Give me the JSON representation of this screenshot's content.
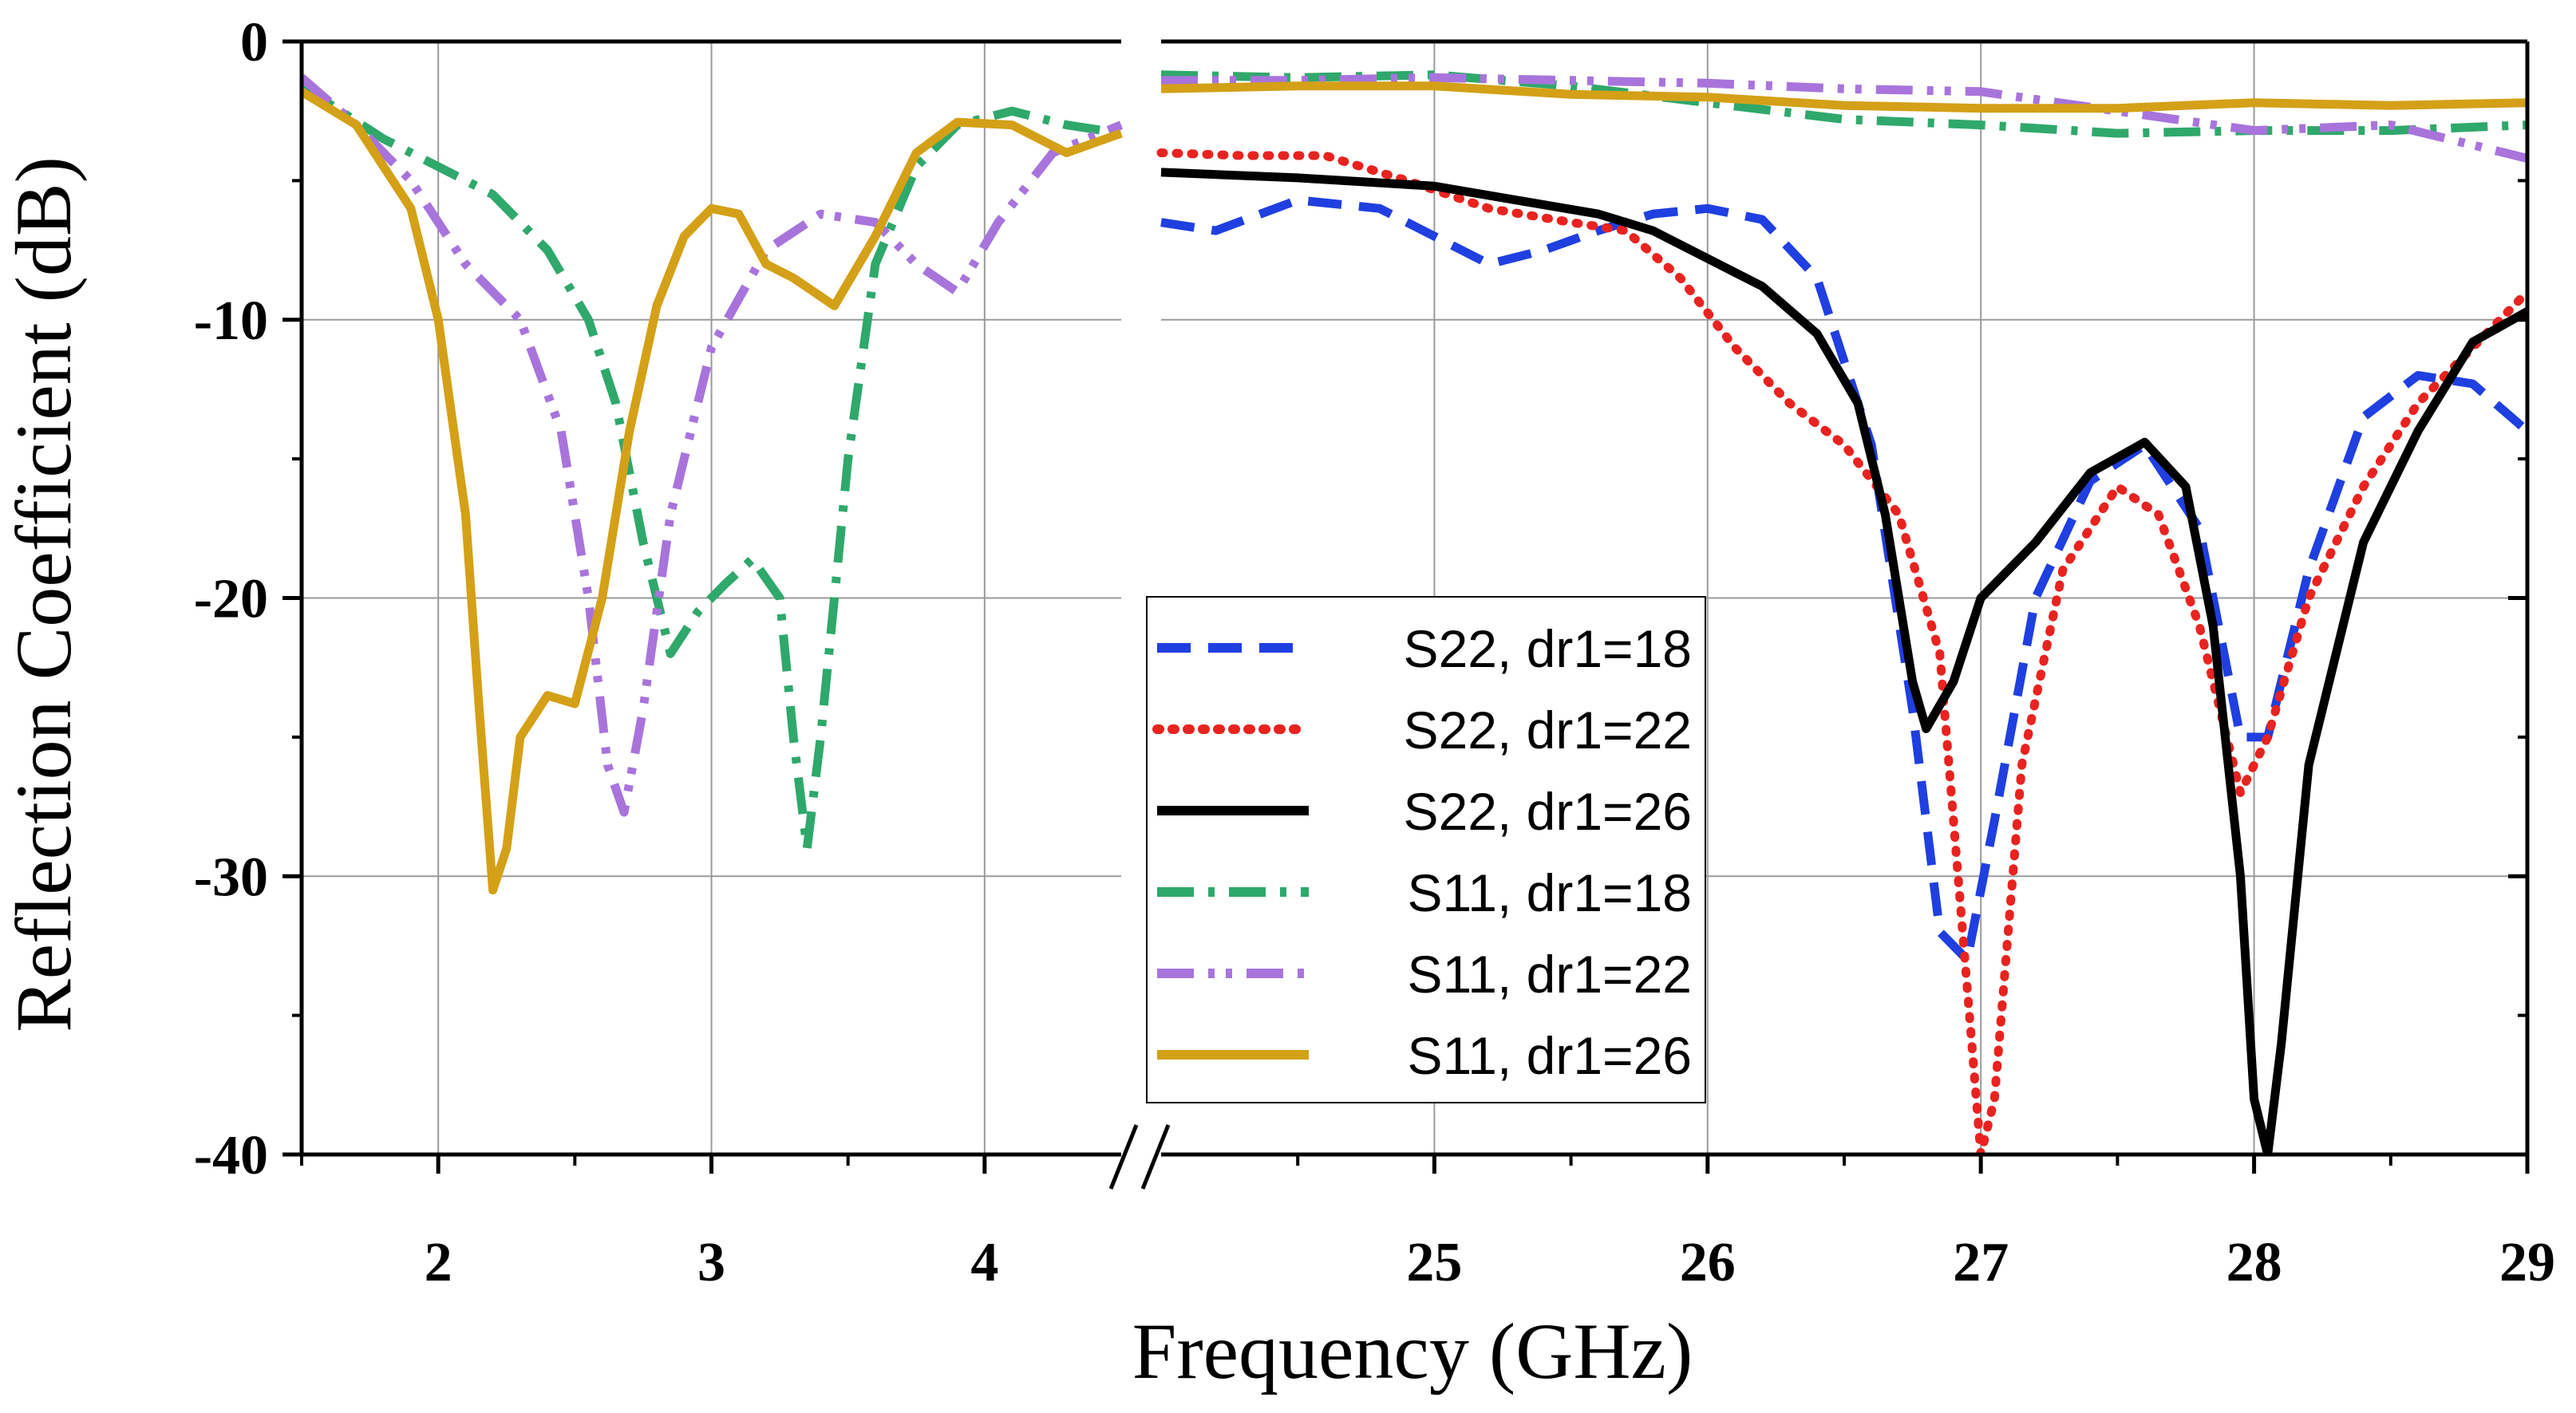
{
  "chart_data": {
    "type": "line",
    "xlabel": "Frequency (GHz)",
    "ylabel": "Reflection Coefficient (dB)",
    "ylim": [
      -40,
      0
    ],
    "grid": true,
    "legend_position": "center-right",
    "axis_break": "//",
    "panels": [
      {
        "name": "low-band",
        "xlim": [
          1.5,
          4.5
        ],
        "xticks": [
          2,
          3,
          4
        ]
      },
      {
        "name": "high-band",
        "xlim": [
          24,
          29
        ],
        "xticks": [
          25,
          26,
          27,
          28,
          29
        ]
      }
    ],
    "yticks": [
      0,
      -10,
      -20,
      -30,
      -40
    ],
    "xtick_labels": [
      "2",
      "3",
      "4",
      "25",
      "26",
      "27",
      "28",
      "29"
    ],
    "ytick_labels": [
      "0",
      "-10",
      "-20",
      "-30",
      "-40"
    ],
    "series": [
      {
        "name": "S22, dr1=18",
        "color": "#1f3fe0",
        "style": "dash",
        "points": [
          [
            24.0,
            -6.5
          ],
          [
            24.2,
            -6.8
          ],
          [
            24.5,
            -5.7
          ],
          [
            24.8,
            -6.0
          ],
          [
            25.0,
            -7.0
          ],
          [
            25.2,
            -8.0
          ],
          [
            25.4,
            -7.5
          ],
          [
            25.6,
            -6.8
          ],
          [
            25.8,
            -6.2
          ],
          [
            26.0,
            -6.0
          ],
          [
            26.2,
            -6.4
          ],
          [
            26.4,
            -8.5
          ],
          [
            26.6,
            -14.5
          ],
          [
            26.75,
            -24.0
          ],
          [
            26.85,
            -32.0
          ],
          [
            26.95,
            -33.0
          ],
          [
            27.05,
            -28.0
          ],
          [
            27.2,
            -20.0
          ],
          [
            27.4,
            -15.8
          ],
          [
            27.6,
            -14.5
          ],
          [
            27.8,
            -17.5
          ],
          [
            27.95,
            -25.0
          ],
          [
            28.05,
            -25.0
          ],
          [
            28.2,
            -19.0
          ],
          [
            28.4,
            -13.5
          ],
          [
            28.6,
            -12.0
          ],
          [
            28.8,
            -12.3
          ],
          [
            29.0,
            -14.0
          ]
        ]
      },
      {
        "name": "S22, dr1=22",
        "color": "#e8231f",
        "style": "dot",
        "points": [
          [
            24.0,
            -4.0
          ],
          [
            24.3,
            -4.1
          ],
          [
            24.6,
            -4.1
          ],
          [
            24.9,
            -5.0
          ],
          [
            25.2,
            -6.0
          ],
          [
            25.5,
            -6.5
          ],
          [
            25.7,
            -6.8
          ],
          [
            25.9,
            -8.5
          ],
          [
            26.1,
            -11.0
          ],
          [
            26.3,
            -13.0
          ],
          [
            26.5,
            -14.5
          ],
          [
            26.7,
            -17.0
          ],
          [
            26.85,
            -22.0
          ],
          [
            26.95,
            -34.0
          ],
          [
            27.0,
            -40.0
          ],
          [
            27.05,
            -38.0
          ],
          [
            27.15,
            -26.0
          ],
          [
            27.3,
            -19.0
          ],
          [
            27.5,
            -16.0
          ],
          [
            27.65,
            -17.0
          ],
          [
            27.8,
            -21.0
          ],
          [
            27.95,
            -27.0
          ],
          [
            28.05,
            -25.0
          ],
          [
            28.2,
            -20.0
          ],
          [
            28.4,
            -16.0
          ],
          [
            28.6,
            -13.0
          ],
          [
            28.8,
            -11.0
          ],
          [
            29.0,
            -9.0
          ]
        ]
      },
      {
        "name": "S22, dr1=26",
        "color": "#000000",
        "style": "solid",
        "points": [
          [
            24.0,
            -4.7
          ],
          [
            24.5,
            -4.9
          ],
          [
            25.0,
            -5.2
          ],
          [
            25.3,
            -5.7
          ],
          [
            25.6,
            -6.2
          ],
          [
            25.8,
            -6.8
          ],
          [
            26.0,
            -7.8
          ],
          [
            26.2,
            -8.8
          ],
          [
            26.4,
            -10.5
          ],
          [
            26.55,
            -13.0
          ],
          [
            26.65,
            -17.0
          ],
          [
            26.75,
            -23.0
          ],
          [
            26.8,
            -24.7
          ],
          [
            26.9,
            -23.0
          ],
          [
            27.0,
            -20.0
          ],
          [
            27.2,
            -18.0
          ],
          [
            27.4,
            -15.5
          ],
          [
            27.6,
            -14.4
          ],
          [
            27.75,
            -16.0
          ],
          [
            27.85,
            -21.0
          ],
          [
            27.95,
            -30.0
          ],
          [
            28.0,
            -38.0
          ],
          [
            28.05,
            -40.0
          ],
          [
            28.1,
            -36.0
          ],
          [
            28.2,
            -26.0
          ],
          [
            28.4,
            -18.0
          ],
          [
            28.6,
            -14.0
          ],
          [
            28.8,
            -10.8
          ],
          [
            29.0,
            -9.7
          ]
        ]
      },
      {
        "name": "S11, dr1=18",
        "color": "#2fa86b",
        "style": "dashdot",
        "points": [
          [
            1.5,
            -1.6
          ],
          [
            1.8,
            -3.5
          ],
          [
            2.0,
            -4.5
          ],
          [
            2.2,
            -5.5
          ],
          [
            2.4,
            -7.5
          ],
          [
            2.55,
            -10.0
          ],
          [
            2.65,
            -13.0
          ],
          [
            2.75,
            -18.0
          ],
          [
            2.85,
            -22.0
          ],
          [
            2.95,
            -20.5
          ],
          [
            3.05,
            -19.5
          ],
          [
            3.15,
            -18.6
          ],
          [
            3.25,
            -20.0
          ],
          [
            3.3,
            -25.0
          ],
          [
            3.35,
            -29.0
          ],
          [
            3.4,
            -25.0
          ],
          [
            3.5,
            -15.0
          ],
          [
            3.6,
            -8.0
          ],
          [
            3.75,
            -4.5
          ],
          [
            3.9,
            -3.0
          ],
          [
            4.1,
            -2.5
          ],
          [
            4.3,
            -3.0
          ],
          [
            4.5,
            -3.3
          ],
          [
            24.0,
            -1.2
          ],
          [
            24.5,
            -1.3
          ],
          [
            25.0,
            -1.2
          ],
          [
            25.5,
            -1.6
          ],
          [
            26.0,
            -2.2
          ],
          [
            26.5,
            -2.8
          ],
          [
            27.0,
            -3.0
          ],
          [
            27.5,
            -3.3
          ],
          [
            28.0,
            -3.2
          ],
          [
            28.5,
            -3.2
          ],
          [
            29.0,
            -3.0
          ]
        ]
      },
      {
        "name": "S11, dr1=22",
        "color": "#a874dc",
        "style": "dashdotdot",
        "points": [
          [
            1.5,
            -1.3
          ],
          [
            1.7,
            -3.0
          ],
          [
            1.9,
            -5.0
          ],
          [
            2.1,
            -8.0
          ],
          [
            2.3,
            -10.0
          ],
          [
            2.45,
            -14.0
          ],
          [
            2.55,
            -20.0
          ],
          [
            2.62,
            -26.0
          ],
          [
            2.68,
            -27.7
          ],
          [
            2.75,
            -24.0
          ],
          [
            2.85,
            -17.0
          ],
          [
            3.0,
            -11.0
          ],
          [
            3.2,
            -7.5
          ],
          [
            3.4,
            -6.2
          ],
          [
            3.6,
            -6.5
          ],
          [
            3.75,
            -8.0
          ],
          [
            3.9,
            -9.0
          ],
          [
            4.05,
            -6.5
          ],
          [
            4.25,
            -4.0
          ],
          [
            4.5,
            -3.0
          ],
          [
            24.0,
            -1.4
          ],
          [
            24.5,
            -1.4
          ],
          [
            25.0,
            -1.3
          ],
          [
            25.5,
            -1.4
          ],
          [
            26.0,
            -1.5
          ],
          [
            26.5,
            -1.7
          ],
          [
            27.0,
            -1.8
          ],
          [
            27.5,
            -2.5
          ],
          [
            28.0,
            -3.2
          ],
          [
            28.5,
            -3.0
          ],
          [
            29.0,
            -4.2
          ]
        ]
      },
      {
        "name": "S11, dr1=26",
        "color": "#d4a017",
        "style": "solid",
        "points": [
          [
            1.5,
            -1.8
          ],
          [
            1.7,
            -3.0
          ],
          [
            1.9,
            -6.0
          ],
          [
            2.0,
            -10.0
          ],
          [
            2.1,
            -17.0
          ],
          [
            2.15,
            -24.0
          ],
          [
            2.2,
            -30.5
          ],
          [
            2.25,
            -29.0
          ],
          [
            2.3,
            -25.0
          ],
          [
            2.4,
            -23.5
          ],
          [
            2.5,
            -23.8
          ],
          [
            2.6,
            -20.0
          ],
          [
            2.7,
            -14.0
          ],
          [
            2.8,
            -9.5
          ],
          [
            2.9,
            -7.0
          ],
          [
            3.0,
            -6.0
          ],
          [
            3.1,
            -6.2
          ],
          [
            3.2,
            -8.0
          ],
          [
            3.3,
            -8.5
          ],
          [
            3.45,
            -9.5
          ],
          [
            3.6,
            -7.0
          ],
          [
            3.75,
            -4.0
          ],
          [
            3.9,
            -2.9
          ],
          [
            4.1,
            -3.0
          ],
          [
            4.3,
            -4.0
          ],
          [
            4.5,
            -3.3
          ],
          [
            24.0,
            -1.7
          ],
          [
            24.5,
            -1.6
          ],
          [
            25.0,
            -1.6
          ],
          [
            25.5,
            -1.9
          ],
          [
            26.0,
            -2.0
          ],
          [
            26.5,
            -2.3
          ],
          [
            27.0,
            -2.4
          ],
          [
            27.5,
            -2.4
          ],
          [
            28.0,
            -2.2
          ],
          [
            28.5,
            -2.3
          ],
          [
            29.0,
            -2.2
          ]
        ]
      }
    ]
  }
}
